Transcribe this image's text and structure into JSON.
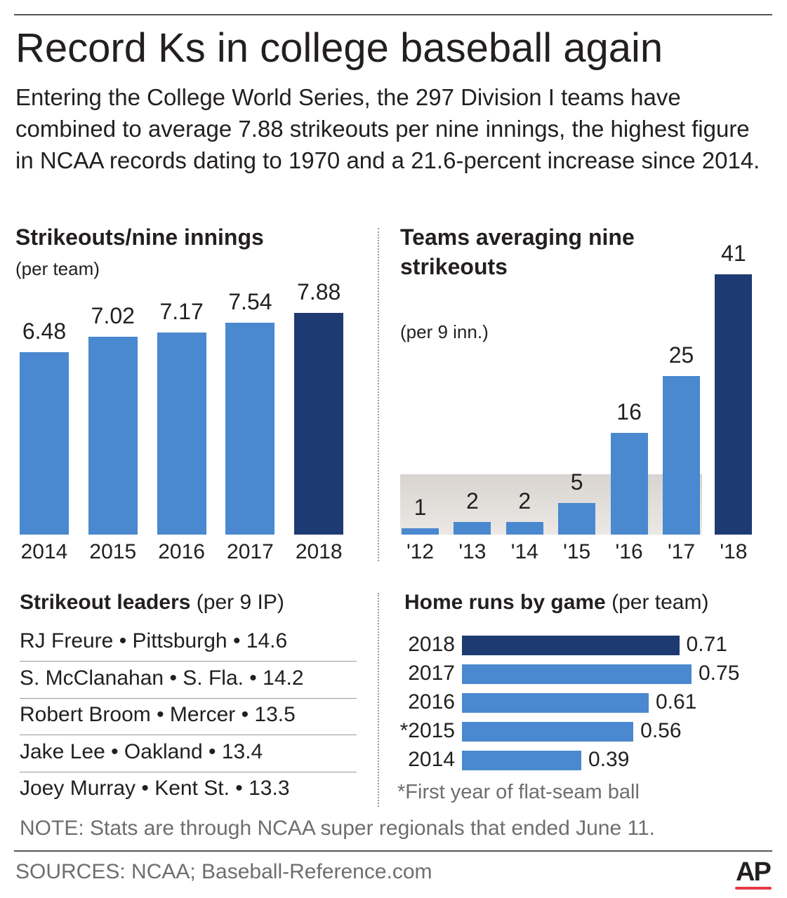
{
  "title": "Record Ks in college baseball again",
  "intro": "Entering the College World Series, the 297 Division I teams have combined to average 7.88 strikeouts per nine innings, the highest figure in NCAA records dating to 1970 and a 21.6-percent increase since 2014.",
  "colors": {
    "light": "#4a88cf",
    "dark": "#1e3a72"
  },
  "chart_data": [
    {
      "type": "bar",
      "title": "Strikeouts/nine innings",
      "subtitle": "(per team)",
      "categories": [
        "2014",
        "2015",
        "2016",
        "2017",
        "2018"
      ],
      "values": [
        6.48,
        7.02,
        7.17,
        7.54,
        7.88
      ],
      "value_labels": [
        "6.48",
        "7.02",
        "7.17",
        "7.54",
        "7.88"
      ],
      "highlight": "2018",
      "ylim": [
        0,
        8
      ]
    },
    {
      "type": "bar",
      "title": "Teams averaging nine strikeouts",
      "title_line1": "Teams averaging nine",
      "title_line2": "strikeouts",
      "subtitle": "(per 9 inn.)",
      "categories": [
        "'12",
        "'13",
        "'14",
        "'15",
        "'16",
        "'17",
        "'18"
      ],
      "values": [
        1,
        2,
        2,
        5,
        16,
        25,
        41
      ],
      "value_labels": [
        "1",
        "2",
        "2",
        "5",
        "16",
        "25",
        "41"
      ],
      "highlight": "'18",
      "ylim": [
        0,
        42
      ]
    },
    {
      "type": "bar",
      "orientation": "horizontal",
      "title": "Home runs by game",
      "subtitle": "(per team)",
      "categories": [
        "2018",
        "2017",
        "2016",
        "*2015",
        "2014"
      ],
      "values": [
        0.71,
        0.75,
        0.61,
        0.56,
        0.39
      ],
      "value_labels": [
        "0.71",
        "0.75",
        "0.61",
        "0.56",
        "0.39"
      ],
      "highlight": "2018",
      "footnote": "*First year of flat-seam ball"
    }
  ],
  "leaders": {
    "title": "Strikeout leaders",
    "subtitle": "(per 9 IP)",
    "rows": [
      "RJ Freure • Pittsburgh • 14.6",
      "S. McClanahan • S. Fla. • 14.2",
      "Robert Broom • Mercer • 13.5",
      "Jake Lee • Oakland • 13.4",
      "Joey Murray • Kent St. • 13.3"
    ]
  },
  "note": "NOTE: Stats are through NCAA super regionals that ended June 11.",
  "sources": "SOURCES: NCAA; Baseball-Reference.com",
  "logo": "AP"
}
